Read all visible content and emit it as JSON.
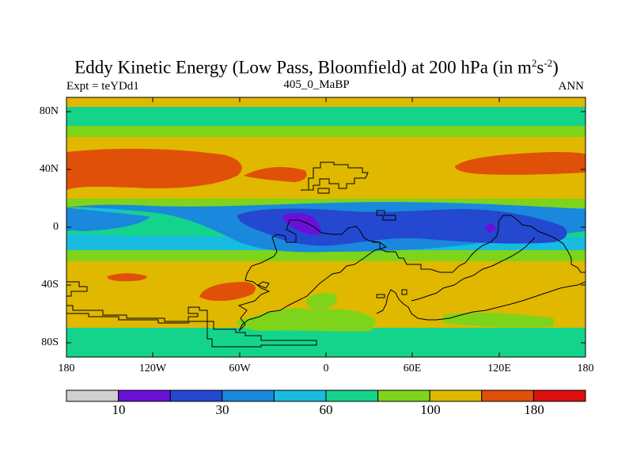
{
  "title": {
    "main": "Eddy Kinetic Energy (Low Pass, Bloomfield) at 200 hPa (in m",
    "sup1": "2",
    "mid": "s",
    "sup2": "-2",
    "end": ")"
  },
  "subtitle_left": "Expt = teYDd1",
  "subtitle_center": "405_0_MaBP",
  "subtitle_right": "ANN",
  "axes": {
    "lat_labels": [
      "80N",
      "40N",
      "0",
      "40S",
      "80S"
    ],
    "lon_labels": [
      "180",
      "120W",
      "60W",
      "0",
      "60E",
      "120E",
      "180"
    ]
  },
  "colorbar": {
    "colors": [
      "#cfcfcf",
      "#6a0fd8",
      "#2448d0",
      "#1a88dc",
      "#18bce0",
      "#14d48c",
      "#7ed41a",
      "#e0b800",
      "#e05008",
      "#dd1010"
    ],
    "tick_labels": [
      "10",
      "30",
      "60",
      "100",
      "180"
    ]
  },
  "map_colors": {
    "lightgreen": "#7ed41a",
    "teal": "#14d48c",
    "cyan": "#18bce0",
    "lightblue": "#1a88dc",
    "blue": "#2448d0",
    "purple": "#6a0fd8",
    "yellow": "#e0b800",
    "orange": "#e05008"
  }
}
